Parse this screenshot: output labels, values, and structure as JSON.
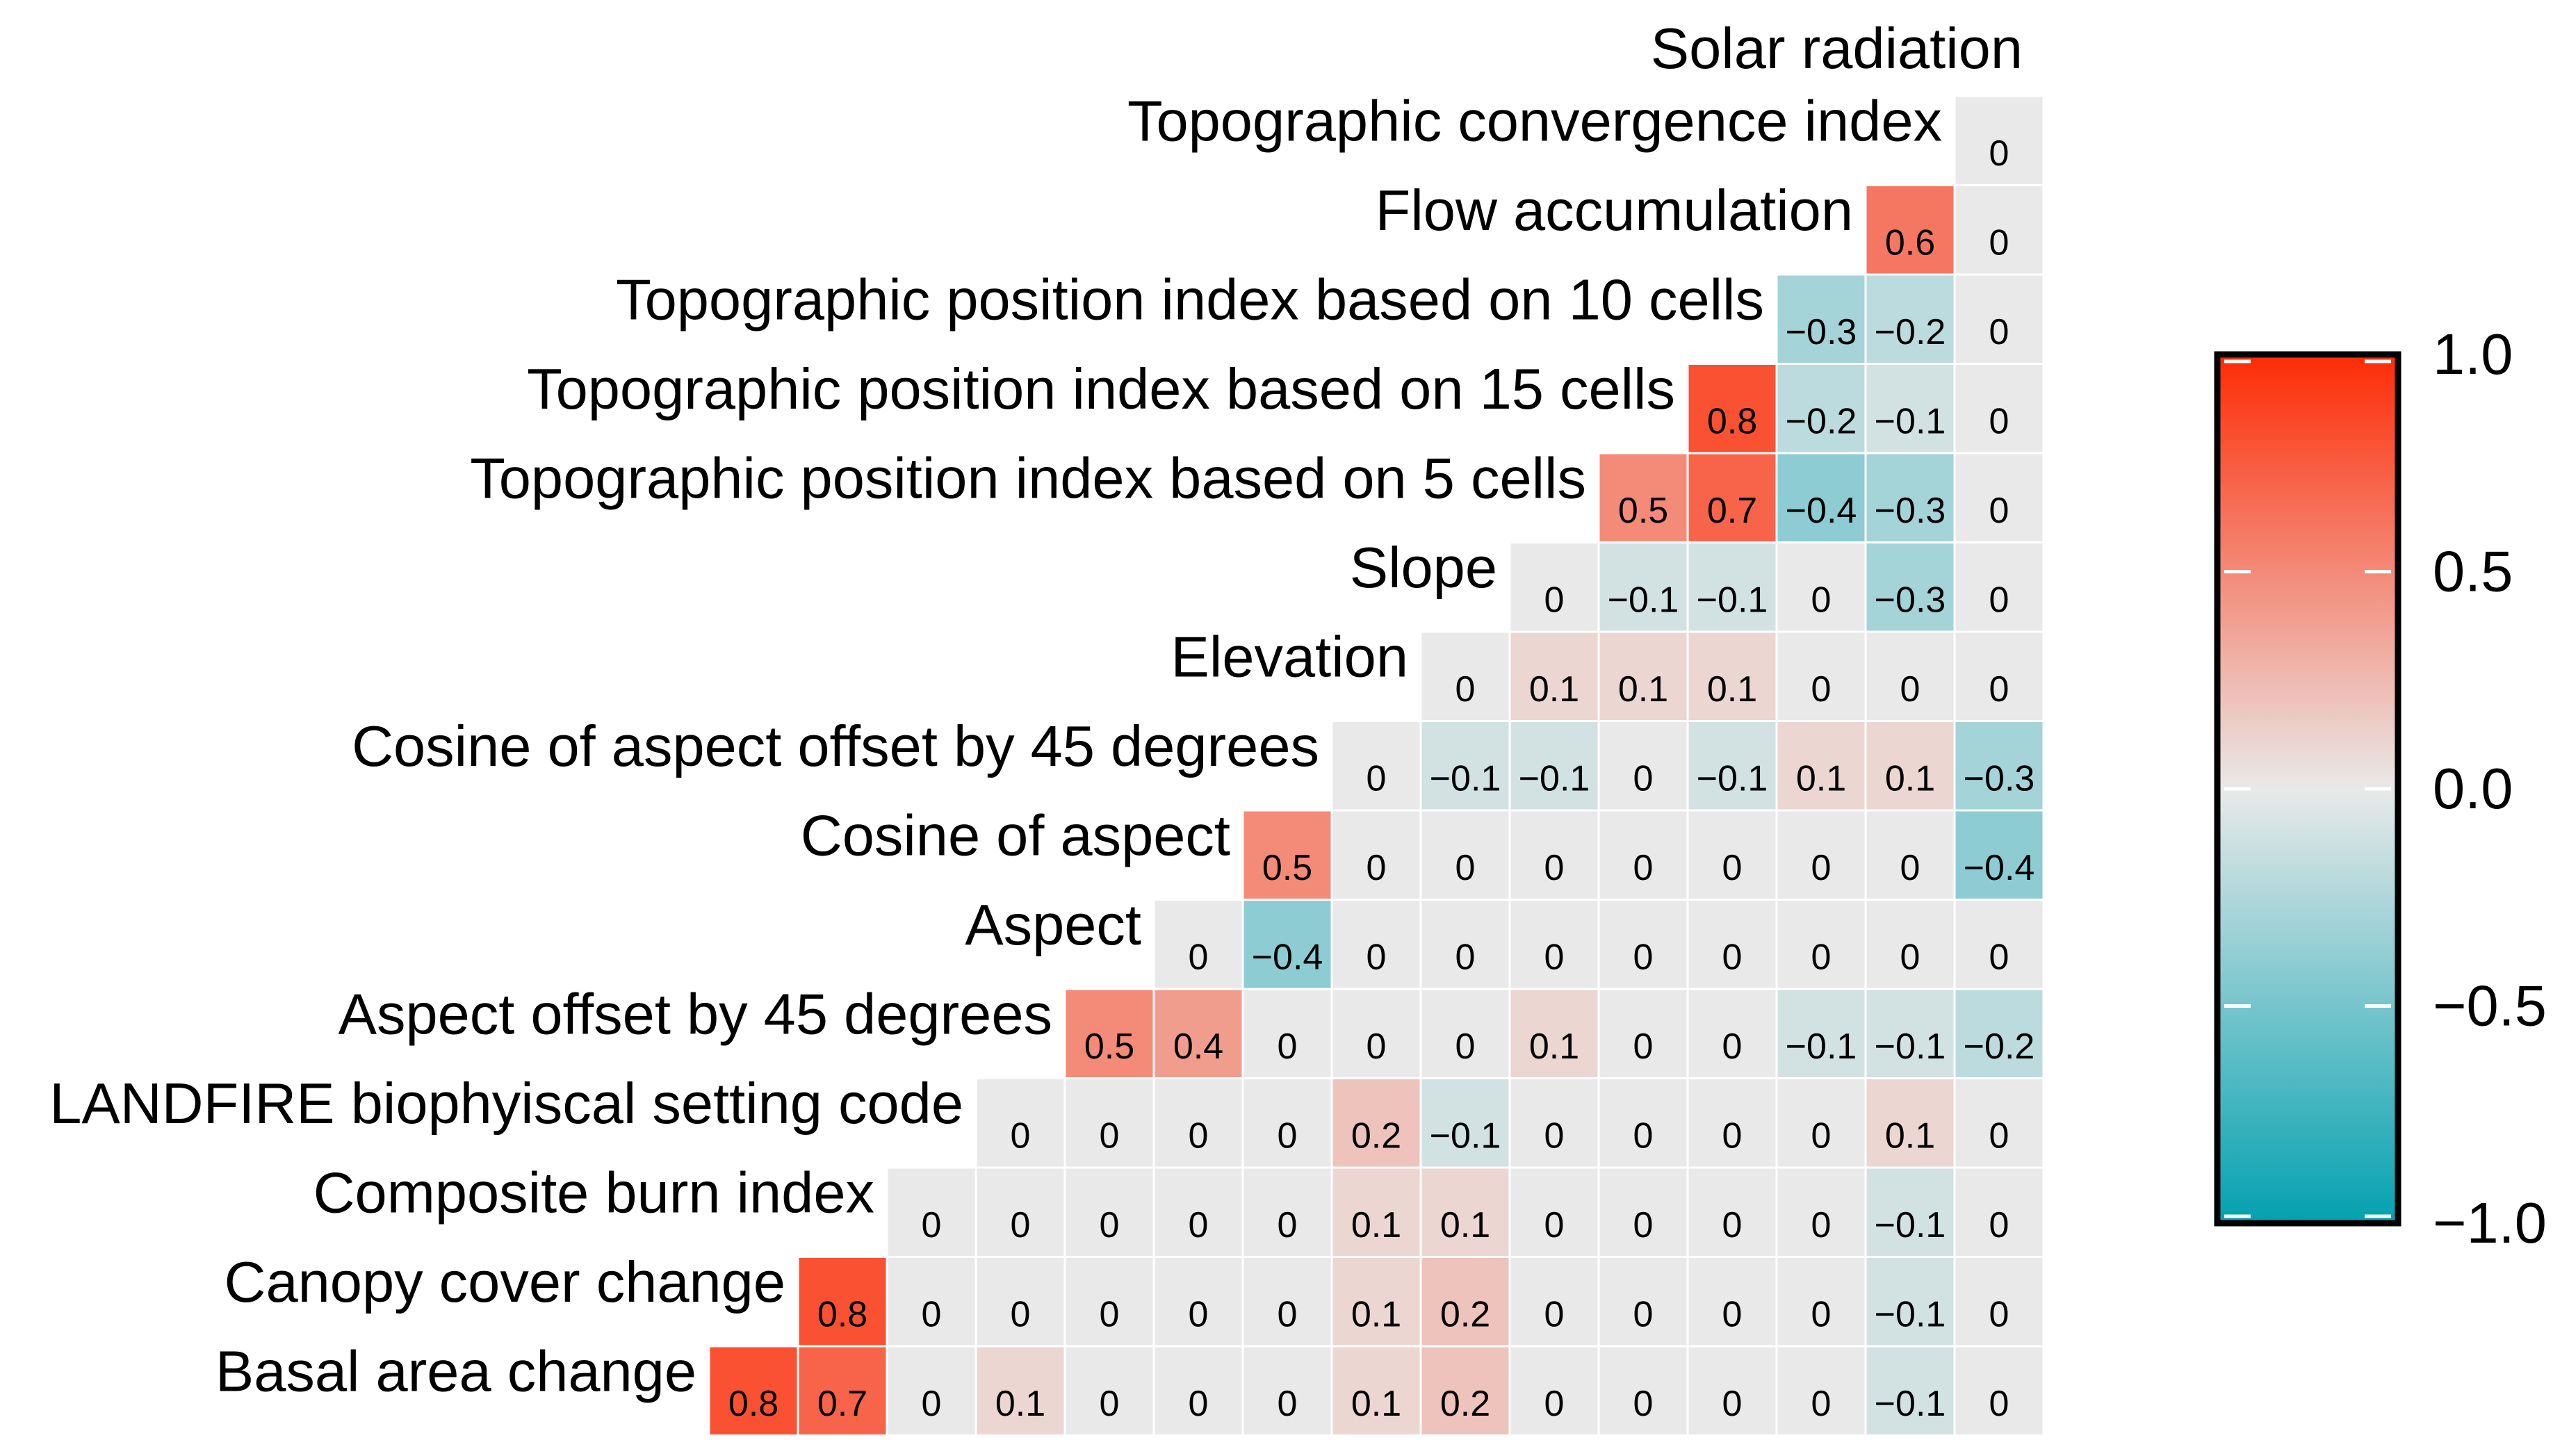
{
  "chart_data": {
    "type": "heatmap",
    "subtype": "lower-triangle correlation matrix",
    "variables": [
      "Solar radiation",
      "Topographic convergence index",
      "Flow accumulation",
      "Topographic position index based on 10 cells",
      "Topographic position index based on 15 cells",
      "Topographic position index based on 5 cells",
      "Slope",
      "Elevation",
      "Cosine of aspect offset by 45 degrees",
      "Cosine of aspect",
      "Aspect",
      "Aspect offset by 45 degrees",
      "LANDFIRE biophyiscal setting code",
      "Composite burn index",
      "Canopy cover change",
      "Basal area change"
    ],
    "rows": [
      {
        "label": "Topographic convergence index",
        "values": [
          "0"
        ]
      },
      {
        "label": "Flow accumulation",
        "values": [
          "0.6",
          "0"
        ]
      },
      {
        "label": "Topographic position index based on 10 cells",
        "values": [
          "−0.3",
          "−0.2",
          "0"
        ]
      },
      {
        "label": "Topographic position index based on 15 cells",
        "values": [
          "0.8",
          "−0.2",
          "−0.1",
          "0"
        ]
      },
      {
        "label": "Topographic position index based on 5 cells",
        "values": [
          "0.5",
          "0.7",
          "−0.4",
          "−0.3",
          "0"
        ]
      },
      {
        "label": "Slope",
        "values": [
          "0",
          "−0.1",
          "−0.1",
          "0",
          "−0.3",
          "0"
        ]
      },
      {
        "label": "Elevation",
        "values": [
          "0",
          "0.1",
          "0.1",
          "0.1",
          "0",
          "0",
          "0"
        ]
      },
      {
        "label": "Cosine of aspect offset by 45 degrees",
        "values": [
          "0",
          "−0.1",
          "−0.1",
          "0",
          "−0.1",
          "0.1",
          "0.1",
          "−0.3"
        ]
      },
      {
        "label": "Cosine of aspect",
        "values": [
          "0.5",
          "0",
          "0",
          "0",
          "0",
          "0",
          "0",
          "0",
          "−0.4"
        ]
      },
      {
        "label": "Aspect",
        "values": [
          "0",
          "−0.4",
          "0",
          "0",
          "0",
          "0",
          "0",
          "0",
          "0",
          "0"
        ]
      },
      {
        "label": "Aspect offset by 45 degrees",
        "values": [
          "0.5",
          "0.4",
          "0",
          "0",
          "0",
          "0.1",
          "0",
          "0",
          "−0.1",
          "−0.1",
          "−0.2"
        ]
      },
      {
        "label": "LANDFIRE biophyiscal setting code",
        "values": [
          "0",
          "0",
          "0",
          "0",
          "0.2",
          "−0.1",
          "0",
          "0",
          "0",
          "0",
          "0.1",
          "0"
        ]
      },
      {
        "label": "Composite burn index",
        "values": [
          "0",
          "0",
          "0",
          "0",
          "0",
          "0.1",
          "0.1",
          "0",
          "0",
          "0",
          "0",
          "−0.1",
          "0"
        ]
      },
      {
        "label": "Canopy cover change",
        "values": [
          "0.8",
          "0",
          "0",
          "0",
          "0",
          "0",
          "0.1",
          "0.2",
          "0",
          "0",
          "0",
          "0",
          "−0.1",
          "0"
        ]
      },
      {
        "label": "Basal area change",
        "values": [
          "0.8",
          "0.7",
          "0",
          "0.1",
          "0",
          "0",
          "0",
          "0.1",
          "0.2",
          "0",
          "0",
          "0",
          "0",
          "−0.1",
          "0"
        ]
      }
    ],
    "colorbar": {
      "range": [
        -1.0,
        1.0
      ],
      "ticks": [
        {
          "value": 1.0,
          "label": "1.0"
        },
        {
          "value": 0.5,
          "label": "0.5"
        },
        {
          "value": 0.0,
          "label": "0.0"
        },
        {
          "value": -0.5,
          "label": "−0.5"
        },
        {
          "value": -1.0,
          "label": "−1.0"
        }
      ],
      "colors": {
        "high": "#fe2b06",
        "mid": "#e9e9e9",
        "low": "#03a1b0"
      },
      "placement": "right"
    }
  }
}
